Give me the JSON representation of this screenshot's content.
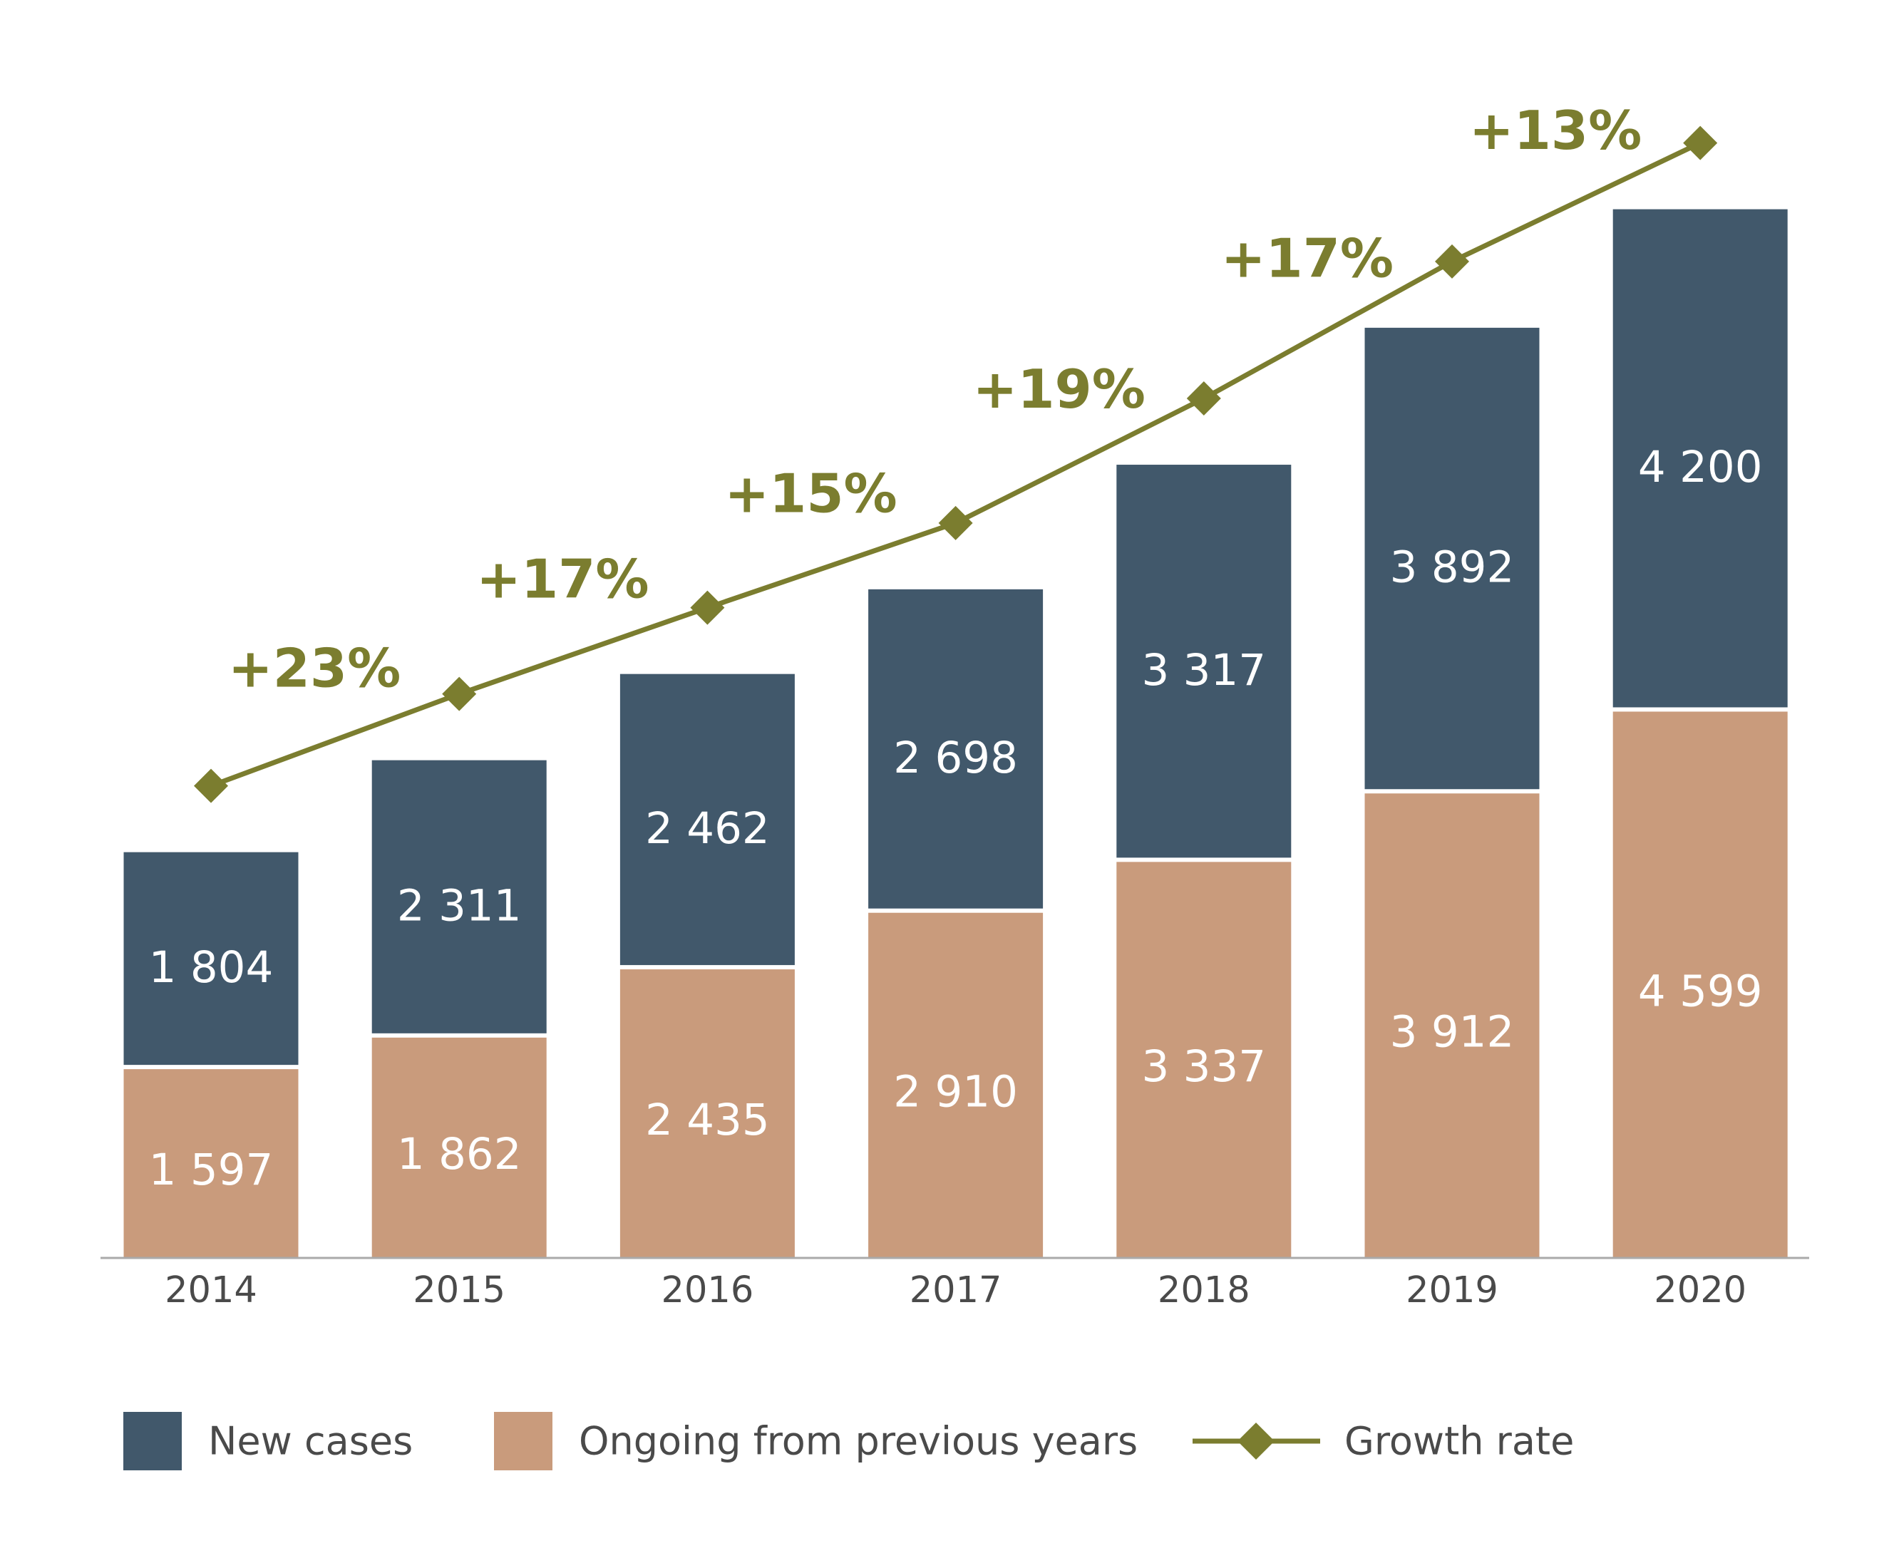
{
  "chart_data": {
    "type": "stacked-bar-line",
    "categories": [
      "2014",
      "2015",
      "2016",
      "2017",
      "2018",
      "2019",
      "2020"
    ],
    "series": [
      {
        "name": "Ongoing from previous years",
        "color": "#c99b7c",
        "values": [
          1597,
          1862,
          2435,
          2910,
          3337,
          3912,
          4599
        ],
        "value_labels": [
          "1 597",
          "1 862",
          "2 435",
          "2 910",
          "3 337",
          "3 912",
          "4 599"
        ]
      },
      {
        "name": "New cases",
        "color": "#41586b",
        "values": [
          1804,
          2311,
          2462,
          2698,
          3317,
          3892,
          4200
        ],
        "value_labels": [
          "1 804",
          "2 311",
          "2 462",
          "2 698",
          "3 317",
          "3 892",
          "4 200"
        ]
      },
      {
        "name": "Growth rate",
        "type": "line",
        "color": "#7b7d2f",
        "values": [
          null,
          23,
          17,
          15,
          19,
          17,
          13
        ],
        "value_labels": [
          null,
          "+23%",
          "+17%",
          "+15%",
          "+19%",
          "+17%",
          "+13%"
        ]
      }
    ],
    "ylim": [
      0,
      9000
    ]
  }
}
